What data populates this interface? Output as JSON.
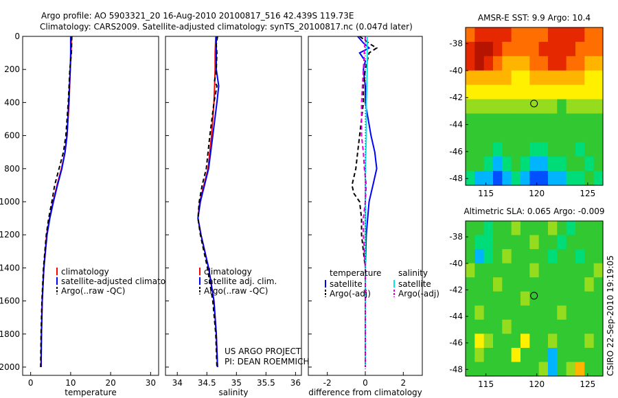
{
  "header": {
    "title_line1": "Argo profile: AO 5903321_20 16-Aug-2010 20100817_516 42.439S 119.73E",
    "title_line2": "Climatology: CARS2009. Satellite-adjusted climatology: synTS_20100817.nc (0.047d later)"
  },
  "footer": {
    "project": "US ARGO PROJECT",
    "pi": "PI: DEAN ROEMMICH",
    "credit": "CSIRO 22-Sep-2010 19:19:05"
  },
  "colors": {
    "climatology": "#ff0000",
    "satellite": "#0000ff",
    "argo": "#000000",
    "salinity_satellite": "#00e5e5",
    "salinity_argo": "#e000e0"
  },
  "chart_data": [
    {
      "type": "line",
      "xlabel": "temperature",
      "ylabel": "",
      "xlim": [
        -2,
        32
      ],
      "ylim": [
        2050,
        0
      ],
      "xticks": [
        0,
        10,
        20,
        30
      ],
      "yticks": [
        0,
        200,
        400,
        600,
        800,
        1000,
        1200,
        1400,
        1600,
        1800,
        2000
      ],
      "legend_position": "lower-right",
      "series": [
        {
          "name": "climatology",
          "color": "#ff0000",
          "dash": "solid",
          "depth": [
            0,
            100,
            200,
            400,
            600,
            700,
            800,
            900,
            1000,
            1100,
            1200,
            1400,
            1600,
            1800,
            2000
          ],
          "values": [
            10.2,
            10.1,
            9.9,
            9.6,
            9.1,
            8.6,
            7.7,
            6.6,
            5.6,
            4.7,
            4.0,
            3.3,
            2.9,
            2.7,
            2.6
          ]
        },
        {
          "name": "satellite-adjusted climatology",
          "color": "#0000ff",
          "dash": "solid",
          "depth": [
            0,
            100,
            200,
            400,
            600,
            700,
            800,
            900,
            1000,
            1100,
            1200,
            1400,
            1600,
            1800,
            2000
          ],
          "values": [
            10.0,
            10.0,
            9.9,
            9.5,
            9.1,
            8.6,
            7.8,
            6.7,
            5.7,
            4.8,
            4.1,
            3.3,
            2.9,
            2.7,
            2.6
          ]
        },
        {
          "name": "Argo(..raw -QC)",
          "color": "#000000",
          "dash": "dashed",
          "depth": [
            0,
            100,
            200,
            400,
            600,
            700,
            800,
            900,
            1000,
            1100,
            1200,
            1400,
            1600,
            1800,
            2000
          ],
          "values": [
            10.3,
            10.2,
            9.8,
            9.4,
            8.8,
            8.2,
            7.1,
            6.0,
            5.3,
            4.5,
            3.9,
            3.2,
            2.8,
            2.6,
            2.5
          ]
        }
      ]
    },
    {
      "type": "line",
      "xlabel": "salinity",
      "ylabel": "",
      "xlim": [
        33.8,
        36.1
      ],
      "ylim": [
        2050,
        0
      ],
      "xticks": [
        34,
        34.5,
        35,
        35.5,
        36
      ],
      "yticks": [
        0,
        200,
        400,
        600,
        800,
        1000,
        1200,
        1400,
        1600,
        1800,
        2000
      ],
      "legend_position": "lower-right",
      "series": [
        {
          "name": "climatology",
          "color": "#ff0000",
          "dash": "solid",
          "depth": [
            0,
            100,
            200,
            300,
            400,
            600,
            800,
            900,
            1000,
            1100,
            1200,
            1400,
            1600,
            1800,
            2000
          ],
          "values": [
            34.65,
            34.64,
            34.64,
            34.63,
            34.62,
            34.58,
            34.52,
            34.45,
            34.38,
            34.35,
            34.4,
            34.53,
            34.62,
            34.66,
            34.68
          ]
        },
        {
          "name": "satellite adj. clim.",
          "color": "#0000ff",
          "dash": "solid",
          "depth": [
            0,
            100,
            200,
            300,
            400,
            600,
            800,
            900,
            1000,
            1100,
            1200,
            1400,
            1600,
            1800,
            2000
          ],
          "values": [
            34.66,
            34.66,
            34.66,
            34.7,
            34.67,
            34.6,
            34.53,
            34.46,
            34.39,
            34.35,
            34.4,
            34.53,
            34.62,
            34.66,
            34.68
          ]
        },
        {
          "name": "Argo(..raw -QC)",
          "color": "#000000",
          "dash": "dashed",
          "depth": [
            0,
            50,
            100,
            200,
            270,
            300,
            400,
            600,
            800,
            900,
            1000,
            1100,
            1200,
            1400,
            1600,
            1800,
            2000
          ],
          "values": [
            34.68,
            34.66,
            34.67,
            34.66,
            34.63,
            34.67,
            34.62,
            34.55,
            34.49,
            34.42,
            34.37,
            34.35,
            34.39,
            34.51,
            34.6,
            34.65,
            34.67
          ]
        }
      ]
    },
    {
      "type": "line",
      "xlabel": "difference from climatology",
      "ylabel": "",
      "xlim": [
        -3,
        3
      ],
      "ylim": [
        2050,
        0
      ],
      "xticks": [
        -2,
        0,
        2
      ],
      "yticks": [
        0,
        200,
        400,
        600,
        800,
        1000,
        1200,
        1400,
        1600,
        1800,
        2000
      ],
      "legend_headers": [
        "temperature",
        "salinity"
      ],
      "legend_position": "lower-right",
      "series": [
        {
          "name": "satellite",
          "group": "temperature",
          "color": "#0000ff",
          "dash": "solid",
          "depth": [
            0,
            40,
            70,
            100,
            150,
            200,
            300,
            400,
            600,
            700,
            800,
            900,
            1000,
            1200,
            1400,
            1600,
            1800,
            2000
          ],
          "values": [
            -0.4,
            -0.1,
            0.2,
            -0.3,
            0.0,
            -0.1,
            0.0,
            0.0,
            0.3,
            0.5,
            0.6,
            0.4,
            0.2,
            0.05,
            0.0,
            0.0,
            0.0,
            0.0
          ]
        },
        {
          "name": "Argo(-adj)",
          "group": "temperature",
          "color": "#000000",
          "dash": "dashed",
          "depth": [
            0,
            50,
            70,
            100,
            150,
            200,
            300,
            400,
            500,
            600,
            700,
            800,
            900,
            950,
            1000,
            1100,
            1200,
            1400,
            1600,
            1800,
            2000
          ],
          "values": [
            -0.3,
            0.3,
            0.6,
            0.2,
            0.1,
            0.0,
            -0.1,
            -0.1,
            -0.2,
            -0.3,
            -0.4,
            -0.5,
            -0.7,
            -0.6,
            -0.3,
            -0.2,
            -0.2,
            0.0,
            0.0,
            0.0,
            0.0
          ]
        },
        {
          "name": "satellite",
          "group": "salinity",
          "color": "#00e5e5",
          "dash": "solid",
          "depth": [
            0,
            200,
            400,
            600,
            800,
            1000,
            1200,
            1400,
            1600,
            1800,
            2000
          ],
          "values": [
            0.1,
            0.1,
            0.05,
            0.05,
            0.0,
            0.0,
            0.0,
            0.0,
            0.0,
            0.0,
            0.0
          ]
        },
        {
          "name": "Argo(-adj)",
          "group": "salinity",
          "color": "#e000e0",
          "dash": "dashed",
          "depth": [
            0,
            200,
            400,
            600,
            700,
            800,
            900,
            1000,
            1100,
            1200,
            1400,
            1600,
            1800,
            2000
          ],
          "values": [
            0.0,
            -0.1,
            -0.2,
            -0.2,
            -0.1,
            -0.05,
            0.05,
            0.0,
            -0.1,
            -0.1,
            0.0,
            0.0,
            0.0,
            0.0
          ]
        }
      ]
    },
    {
      "type": "heatmap",
      "title": "AMSR-E SST: 9.9 Argo: 10.4",
      "xlim": [
        113,
        126.5
      ],
      "ylim": [
        -48.5,
        -36.8
      ],
      "xticks": [
        115,
        120,
        125
      ],
      "yticks": [
        -38,
        -40,
        -42,
        -44,
        -46,
        -48
      ],
      "marker": {
        "lon": 119.73,
        "lat": -42.439
      },
      "colormap": [
        "#0050ff",
        "#00b4ff",
        "#00dc78",
        "#32c832",
        "#96dc1e",
        "#fff000",
        "#ffb400",
        "#ff6e00",
        "#e62800",
        "#b41400"
      ],
      "rows_north_to_south": [
        [
          7,
          8,
          8,
          8,
          8,
          7,
          7,
          7,
          7,
          8,
          8,
          8,
          8,
          7,
          7
        ],
        [
          8,
          9,
          9,
          8,
          7,
          7,
          7,
          7,
          8,
          8,
          8,
          8,
          7,
          7,
          7
        ],
        [
          8,
          9,
          8,
          7,
          6,
          6,
          6,
          7,
          7,
          8,
          8,
          7,
          7,
          6,
          6
        ],
        [
          6,
          6,
          6,
          6,
          6,
          5,
          5,
          6,
          6,
          6,
          6,
          6,
          6,
          5,
          5
        ],
        [
          5,
          5,
          5,
          5,
          5,
          5,
          5,
          5,
          5,
          5,
          5,
          5,
          5,
          5,
          5
        ],
        [
          4,
          4,
          4,
          4,
          4,
          4,
          4,
          4,
          4,
          4,
          3,
          4,
          4,
          4,
          4
        ],
        [
          3,
          3,
          3,
          3,
          3,
          3,
          3,
          3,
          3,
          3,
          3,
          3,
          3,
          3,
          3
        ],
        [
          3,
          3,
          3,
          3,
          3,
          3,
          3,
          3,
          3,
          3,
          3,
          3,
          3,
          3,
          3
        ],
        [
          3,
          3,
          3,
          2,
          3,
          3,
          3,
          2,
          2,
          3,
          3,
          3,
          2,
          3,
          3
        ],
        [
          3,
          3,
          2,
          1,
          2,
          3,
          2,
          1,
          1,
          2,
          2,
          3,
          3,
          2,
          3
        ],
        [
          2,
          1,
          1,
          0,
          1,
          2,
          1,
          0,
          0,
          1,
          1,
          2,
          2,
          3,
          2
        ]
      ]
    },
    {
      "type": "heatmap",
      "title": "Altimetric SLA: 0.065 Argo: -0.009",
      "xlim": [
        113,
        126.5
      ],
      "ylim": [
        -48.5,
        -36.8
      ],
      "xticks": [
        115,
        120,
        125
      ],
      "yticks": [
        -38,
        -40,
        -42,
        -44,
        -46,
        -48
      ],
      "marker": {
        "lon": 119.73,
        "lat": -42.439
      },
      "colormap": [
        "#0050ff",
        "#00b4ff",
        "#00dc78",
        "#32c832",
        "#96dc1e",
        "#fff000",
        "#ffb400",
        "#ff6e00",
        "#e62800",
        "#b41400"
      ],
      "rows_north_to_south": [
        [
          3,
          3,
          2,
          3,
          3,
          4,
          3,
          3,
          3,
          4,
          3,
          2,
          3,
          3,
          3
        ],
        [
          3,
          2,
          2,
          3,
          3,
          3,
          3,
          4,
          3,
          3,
          2,
          3,
          3,
          3,
          3
        ],
        [
          3,
          1,
          2,
          3,
          4,
          3,
          3,
          3,
          3,
          2,
          3,
          3,
          2,
          3,
          3
        ],
        [
          4,
          3,
          3,
          3,
          3,
          3,
          3,
          4,
          3,
          3,
          3,
          3,
          3,
          3,
          4
        ],
        [
          3,
          3,
          3,
          4,
          3,
          3,
          3,
          3,
          3,
          3,
          3,
          3,
          3,
          4,
          3
        ],
        [
          3,
          3,
          3,
          3,
          3,
          3,
          4,
          3,
          3,
          3,
          3,
          3,
          3,
          3,
          3
        ],
        [
          3,
          4,
          3,
          3,
          3,
          3,
          3,
          3,
          3,
          3,
          4,
          3,
          3,
          3,
          3
        ],
        [
          3,
          3,
          3,
          3,
          4,
          3,
          3,
          3,
          3,
          3,
          3,
          3,
          3,
          3,
          3
        ],
        [
          3,
          5,
          4,
          3,
          3,
          3,
          5,
          3,
          3,
          4,
          3,
          3,
          3,
          4,
          3
        ],
        [
          3,
          4,
          3,
          3,
          3,
          5,
          3,
          3,
          3,
          1,
          3,
          3,
          3,
          3,
          3
        ],
        [
          3,
          3,
          3,
          3,
          3,
          3,
          3,
          3,
          4,
          1,
          3,
          4,
          6,
          3,
          3
        ]
      ]
    }
  ]
}
